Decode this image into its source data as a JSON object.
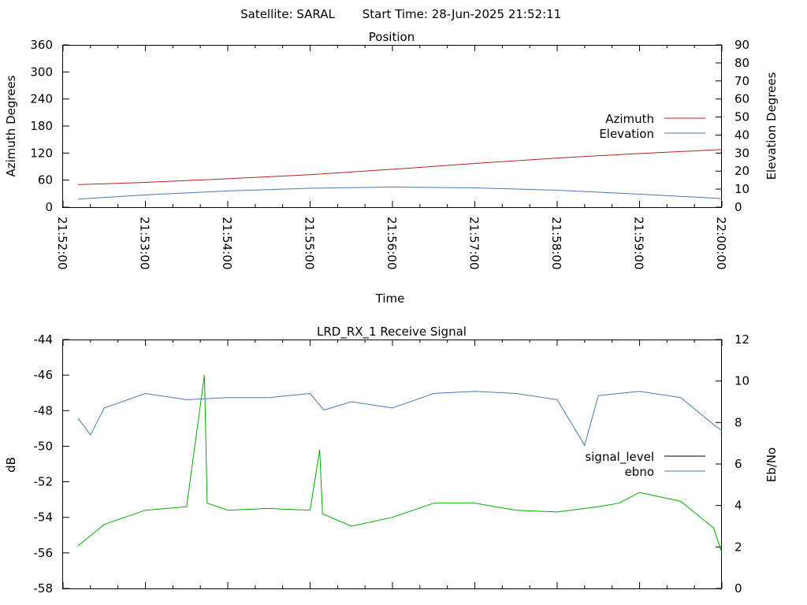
{
  "header": {
    "satellite_text": "Satellite: SARAL",
    "start_time_text": "Start Time: 28-Jun-2025 21:52:11"
  },
  "chart_data": [
    {
      "type": "line",
      "title": "Position",
      "xlabel": "Time",
      "ylabel": "Azimuth Degrees",
      "y2label": "Elevation Degrees",
      "ylim": [
        0,
        360
      ],
      "y2lim": [
        0,
        90
      ],
      "yticks": [
        0,
        60,
        120,
        180,
        240,
        300,
        360
      ],
      "y2ticks": [
        0,
        10,
        20,
        30,
        40,
        50,
        60,
        70,
        80,
        90
      ],
      "xlim": [
        "21:52:00",
        "22:00:00"
      ],
      "xticks": [
        "21:52:00",
        "21:53:00",
        "21:54:00",
        "21:55:00",
        "21:56:00",
        "21:57:00",
        "21:58:00",
        "21:59:00",
        "22:00:00"
      ],
      "grid": false,
      "legend_position": "right",
      "series": [
        {
          "name": "Azimuth",
          "axis": "left",
          "color": "#b22222",
          "x": [
            "21:52:11",
            "21:53:00",
            "21:54:00",
            "21:55:00",
            "21:56:00",
            "21:57:00",
            "21:58:00",
            "21:59:00",
            "22:00:00"
          ],
          "values": [
            50,
            55,
            63,
            72,
            84,
            97,
            109,
            119,
            128
          ]
        },
        {
          "name": "Elevation",
          "axis": "right",
          "color": "#4a79b0",
          "x": [
            "21:52:11",
            "21:53:00",
            "21:54:00",
            "21:55:00",
            "21:56:00",
            "21:57:00",
            "21:58:00",
            "21:59:00",
            "22:00:00"
          ],
          "values": [
            4.5,
            6.8,
            9,
            10.5,
            11.2,
            10.7,
            9.4,
            7.2,
            4.8
          ]
        }
      ]
    },
    {
      "type": "line",
      "title": "LRD_RX_1 Receive Signal",
      "ylabel": "dB",
      "y2label": "Eb/No",
      "ylim": [
        -58,
        -44
      ],
      "y2lim": [
        0,
        12
      ],
      "yticks": [
        -58,
        -56,
        -54,
        -52,
        -50,
        -48,
        -46,
        -44
      ],
      "y2ticks": [
        0,
        2,
        4,
        6,
        8,
        10,
        12
      ],
      "xlim": [
        "21:52:00",
        "22:00:00"
      ],
      "grid": false,
      "legend_position": "right",
      "series": [
        {
          "name": "signal_level",
          "axis": "left",
          "color": "#00aa00",
          "legend_color": "#000000",
          "x": [
            "21:52:11",
            "21:52:30",
            "21:53:00",
            "21:53:30",
            "21:53:43",
            "21:53:45",
            "21:54:00",
            "21:54:30",
            "21:55:00",
            "21:55:07",
            "21:55:09",
            "21:55:30",
            "21:56:00",
            "21:56:30",
            "21:57:00",
            "21:57:30",
            "21:58:00",
            "21:58:30",
            "21:58:45",
            "21:59:00",
            "21:59:30",
            "21:59:54",
            "22:00:00"
          ],
          "values": [
            -55.6,
            -54.4,
            -53.6,
            -53.4,
            -46.0,
            -53.2,
            -53.6,
            -53.5,
            -53.6,
            -50.2,
            -53.8,
            -54.5,
            -54.0,
            -53.2,
            -53.2,
            -53.6,
            -53.7,
            -53.4,
            -53.2,
            -52.6,
            -53.1,
            -54.6,
            -56.0
          ]
        },
        {
          "name": "ebno",
          "axis": "right",
          "color": "#4a79b0",
          "x": [
            "21:52:11",
            "21:52:20",
            "21:52:30",
            "21:53:00",
            "21:53:30",
            "21:54:00",
            "21:54:30",
            "21:55:00",
            "21:55:10",
            "21:55:30",
            "21:56:00",
            "21:56:30",
            "21:57:00",
            "21:57:30",
            "21:58:00",
            "21:58:20",
            "21:58:30",
            "21:59:00",
            "21:59:30",
            "21:59:54",
            "22:00:00"
          ],
          "values": [
            8.2,
            7.4,
            8.7,
            9.4,
            9.1,
            9.2,
            9.2,
            9.4,
            8.6,
            9.0,
            8.7,
            9.4,
            9.5,
            9.4,
            9.1,
            6.9,
            9.3,
            9.5,
            9.2,
            7.9,
            7.6
          ]
        }
      ]
    }
  ]
}
